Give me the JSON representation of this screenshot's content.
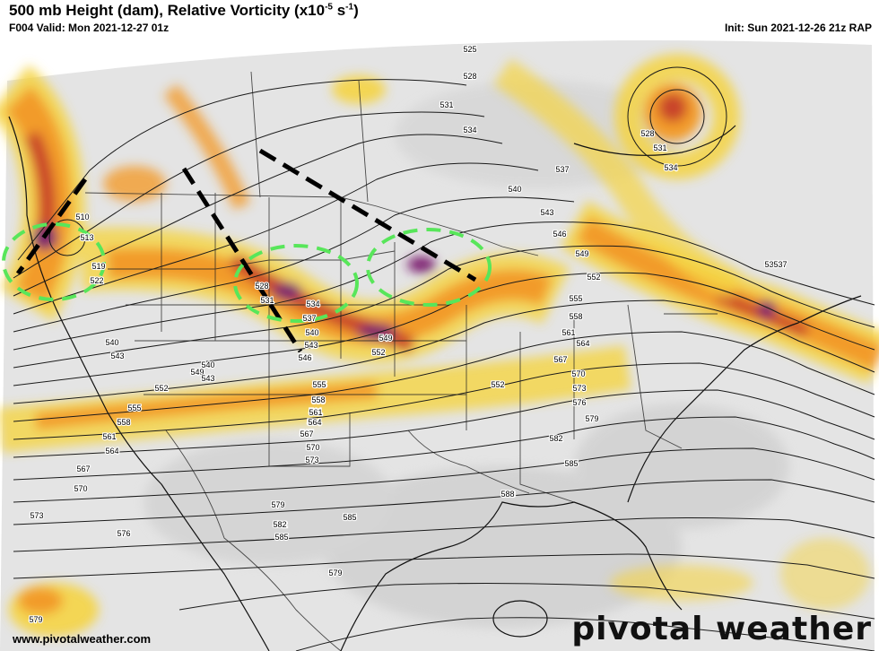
{
  "header": {
    "title_main": "500 mb Height (dam), Relative Vorticity (x10",
    "title_exp": "-5",
    "title_unit": " s",
    "title_exp2": "-1",
    "title_close": ")",
    "valid": "F004 Valid: Mon 2021-12-27 01z",
    "init": "Init: Sun 2021-12-26 21z RAP"
  },
  "footer": {
    "website": "www.pivotalweather.com",
    "brand": "pivotal weather"
  },
  "colors": {
    "vort_yellow": "#f5d442",
    "vort_orange": "#f29b2c",
    "vort_red": "#c9442a",
    "vort_purple": "#7a1f6e",
    "trough_line": "#000000",
    "vort_max_circle": "#58e65a",
    "background_gray": "#d8d8d8"
  },
  "height_labels": [
    {
      "text": "525"
    },
    {
      "text": "528"
    },
    {
      "text": "531"
    },
    {
      "text": "534"
    },
    {
      "text": "537"
    },
    {
      "text": "540"
    },
    {
      "text": "543"
    },
    {
      "text": "546"
    },
    {
      "text": "549"
    },
    {
      "text": "552"
    },
    {
      "text": "555"
    },
    {
      "text": "558"
    },
    {
      "text": "561"
    },
    {
      "text": "564"
    },
    {
      "text": "567"
    },
    {
      "text": "570"
    },
    {
      "text": "573"
    },
    {
      "text": "576"
    },
    {
      "text": "579"
    },
    {
      "text": "582"
    },
    {
      "text": "585"
    },
    {
      "text": "588"
    },
    {
      "text": "510"
    },
    {
      "text": "513"
    },
    {
      "text": "519"
    },
    {
      "text": "522"
    },
    {
      "text": "528"
    },
    {
      "text": "531"
    },
    {
      "text": "534"
    },
    {
      "text": "537"
    },
    {
      "text": "540"
    },
    {
      "text": "543"
    },
    {
      "text": "546"
    },
    {
      "text": "549"
    },
    {
      "text": "552"
    },
    {
      "text": "540"
    },
    {
      "text": "543"
    },
    {
      "text": "552"
    },
    {
      "text": "555"
    },
    {
      "text": "558"
    },
    {
      "text": "561"
    },
    {
      "text": "564"
    },
    {
      "text": "567"
    },
    {
      "text": "570"
    },
    {
      "text": "573"
    },
    {
      "text": "579"
    },
    {
      "text": "582"
    },
    {
      "text": "585"
    },
    {
      "text": "588"
    },
    {
      "text": "579"
    },
    {
      "text": "549"
    },
    {
      "text": "552"
    },
    {
      "text": "555"
    },
    {
      "text": "558"
    },
    {
      "text": "561"
    },
    {
      "text": "564"
    },
    {
      "text": "567"
    },
    {
      "text": "570"
    },
    {
      "text": "573"
    },
    {
      "text": "576"
    },
    {
      "text": "579"
    },
    {
      "text": "582"
    },
    {
      "text": "585"
    },
    {
      "text": "588"
    },
    {
      "text": "528"
    },
    {
      "text": "531"
    },
    {
      "text": "534"
    },
    {
      "text": "537"
    },
    {
      "text": "540"
    },
    {
      "text": "543"
    },
    {
      "text": "546"
    },
    {
      "text": "537"
    },
    {
      "text": "555"
    },
    {
      "text": "558"
    },
    {
      "text": "561"
    },
    {
      "text": "564"
    },
    {
      "text": "567"
    },
    {
      "text": "570"
    },
    {
      "text": "573"
    },
    {
      "text": "576"
    }
  ]
}
